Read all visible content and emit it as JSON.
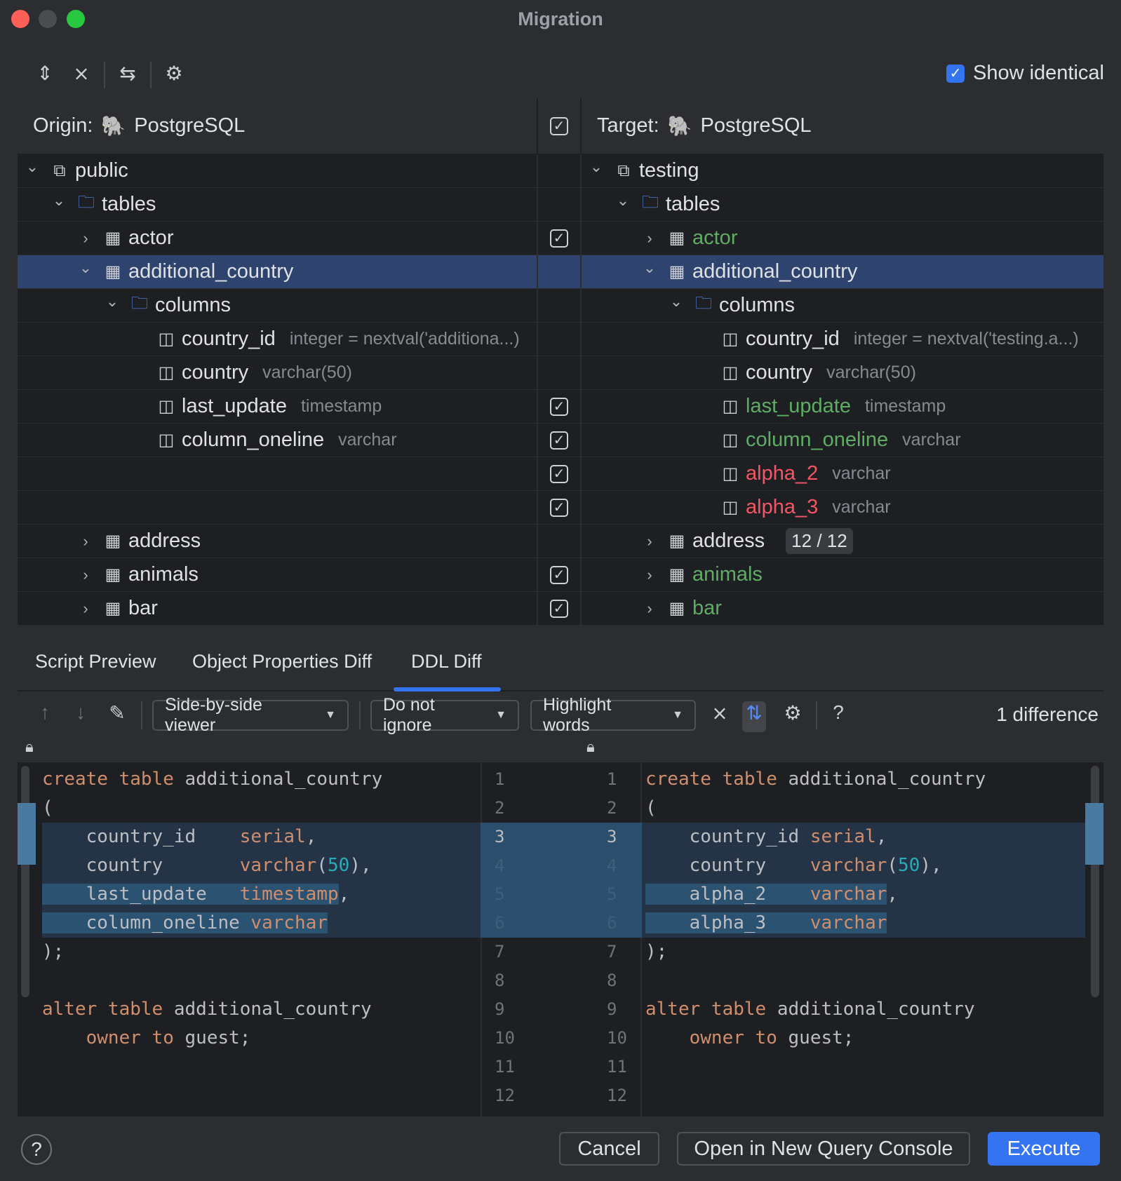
{
  "window": {
    "title": "Migration"
  },
  "toolbar": {
    "icons": [
      "expand-all-icon",
      "collapse-all-icon",
      "swap-icon",
      "settings-icon"
    ],
    "show_identical_label": "Show identical",
    "show_identical_checked": true
  },
  "tree": {
    "origin_label": "Origin:",
    "origin_db": "PostgreSQL",
    "target_label": "Target:",
    "target_db": "PostgreSQL",
    "header_checked": true,
    "colors": {
      "green": "#5fad65",
      "red": "#f75464",
      "selected": "#2e436e"
    },
    "rows": [
      {
        "l": {
          "lvl": 0,
          "arrow": "down",
          "icon": "schema",
          "name": "public"
        },
        "r": {
          "lvl": 0,
          "arrow": "down",
          "icon": "schema",
          "name": "testing"
        }
      },
      {
        "l": {
          "lvl": 1,
          "arrow": "down",
          "icon": "folder",
          "name": "tables"
        },
        "r": {
          "lvl": 1,
          "arrow": "down",
          "icon": "folder",
          "name": "tables"
        }
      },
      {
        "check": true,
        "l": {
          "lvl": 2,
          "arrow": "right",
          "icon": "table",
          "name": "actor"
        },
        "r": {
          "lvl": 2,
          "arrow": "right",
          "icon": "table",
          "name": "actor",
          "color": "green"
        }
      },
      {
        "selected": true,
        "l": {
          "lvl": 2,
          "arrow": "down",
          "icon": "table",
          "name": "additional_country"
        },
        "r": {
          "lvl": 2,
          "arrow": "down",
          "icon": "table",
          "name": "additional_country"
        }
      },
      {
        "l": {
          "lvl": 3,
          "arrow": "down",
          "icon": "folder",
          "name": "columns"
        },
        "r": {
          "lvl": 3,
          "arrow": "down",
          "icon": "folder",
          "name": "columns"
        }
      },
      {
        "l": {
          "lvl": 4,
          "icon": "key-column",
          "name": "country_id",
          "type": "integer = nextval('additiona...)"
        },
        "r": {
          "lvl": 4,
          "icon": "key-column",
          "name": "country_id",
          "type": "integer = nextval('testing.a...)"
        }
      },
      {
        "l": {
          "lvl": 4,
          "icon": "column",
          "name": "country",
          "type": "varchar(50)"
        },
        "r": {
          "lvl": 4,
          "icon": "column",
          "name": "country",
          "type": "varchar(50)"
        }
      },
      {
        "check": true,
        "l": {
          "lvl": 4,
          "icon": "column",
          "name": "last_update",
          "type": "timestamp"
        },
        "r": {
          "lvl": 4,
          "icon": "column",
          "name": "last_update",
          "type": "timestamp",
          "color": "green"
        }
      },
      {
        "check": true,
        "l": {
          "lvl": 4,
          "icon": "column",
          "name": "column_oneline",
          "type": "varchar"
        },
        "r": {
          "lvl": 4,
          "icon": "column",
          "name": "column_oneline",
          "type": "varchar",
          "color": "green"
        }
      },
      {
        "check": true,
        "r": {
          "lvl": 4,
          "icon": "column",
          "name": "alpha_2",
          "type": "varchar",
          "color": "red"
        }
      },
      {
        "check": true,
        "r": {
          "lvl": 4,
          "icon": "column",
          "name": "alpha_3",
          "type": "varchar",
          "color": "red"
        }
      },
      {
        "l": {
          "lvl": 2,
          "arrow": "right",
          "icon": "table",
          "name": "address"
        },
        "r": {
          "lvl": 2,
          "arrow": "right",
          "icon": "table",
          "name": "address",
          "badge": "12 / 12"
        }
      },
      {
        "check": true,
        "l": {
          "lvl": 2,
          "arrow": "right",
          "icon": "table",
          "name": "animals"
        },
        "r": {
          "lvl": 2,
          "arrow": "right",
          "icon": "table",
          "name": "animals",
          "color": "green"
        }
      },
      {
        "check": true,
        "l": {
          "lvl": 2,
          "arrow": "right",
          "icon": "table",
          "name": "bar"
        },
        "r": {
          "lvl": 2,
          "arrow": "right",
          "icon": "table",
          "name": "bar",
          "color": "green"
        }
      }
    ]
  },
  "tabs": [
    {
      "label": "Script Preview"
    },
    {
      "label": "Object Properties Diff"
    },
    {
      "label": "DDL Diff",
      "active": true
    }
  ],
  "diff_toolbar": {
    "viewer": "Side-by-side viewer",
    "ignore": "Do not ignore",
    "highlight": "Highlight words",
    "count": "1 difference"
  },
  "diff": {
    "left": [
      [
        [
          "kw",
          "create "
        ],
        [
          "kw",
          "table "
        ],
        [
          "id",
          "additional_country"
        ]
      ],
      [
        [
          "id",
          "("
        ]
      ],
      [
        [
          "id",
          "    country_id    "
        ],
        [
          "kw",
          "serial"
        ],
        [
          "id",
          ","
        ]
      ],
      [
        [
          "id",
          "    country       "
        ],
        [
          "kw",
          "varchar"
        ],
        [
          "id",
          "("
        ],
        [
          "num",
          "50"
        ],
        [
          "id",
          "),"
        ]
      ],
      [
        [
          "id",
          "    last_update   "
        ],
        [
          "kw",
          "timestamp"
        ],
        [
          "id",
          ","
        ]
      ],
      [
        [
          "id",
          "    column_oneline "
        ],
        [
          "kw",
          "varchar"
        ]
      ],
      [
        [
          "id",
          ");"
        ]
      ],
      [],
      [
        [
          "kw",
          "alter "
        ],
        [
          "kw",
          "table "
        ],
        [
          "id",
          "additional_country"
        ]
      ],
      [
        [
          "id",
          "    "
        ],
        [
          "kw",
          "owner "
        ],
        [
          "kw",
          "to "
        ],
        [
          "id",
          "guest;"
        ]
      ],
      [],
      []
    ],
    "right": [
      [
        [
          "kw",
          "create "
        ],
        [
          "kw",
          "table "
        ],
        [
          "id",
          "additional_country"
        ]
      ],
      [
        [
          "id",
          "("
        ]
      ],
      [
        [
          "id",
          "    country_id "
        ],
        [
          "kw",
          "serial"
        ],
        [
          "id",
          ","
        ]
      ],
      [
        [
          "id",
          "    country    "
        ],
        [
          "kw",
          "varchar"
        ],
        [
          "id",
          "("
        ],
        [
          "num",
          "50"
        ],
        [
          "id",
          "),"
        ]
      ],
      [
        [
          "id",
          "    alpha_2    "
        ],
        [
          "kw",
          "varchar"
        ],
        [
          "id",
          ","
        ]
      ],
      [
        [
          "id",
          "    alpha_3    "
        ],
        [
          "kw",
          "varchar"
        ]
      ],
      [
        [
          "id",
          ");"
        ]
      ],
      [],
      [
        [
          "kw",
          "alter "
        ],
        [
          "kw",
          "table "
        ],
        [
          "id",
          "additional_country"
        ]
      ],
      [
        [
          "id",
          "    "
        ],
        [
          "kw",
          "owner "
        ],
        [
          "kw",
          "to "
        ],
        [
          "id",
          "guest;"
        ]
      ],
      [],
      []
    ],
    "line_numbers": [
      "1",
      "2",
      "3",
      "4",
      "5",
      "6",
      "7",
      "8",
      "9",
      "10",
      "11",
      "12"
    ],
    "changed_lines": [
      3,
      4,
      5,
      6
    ]
  },
  "footer": {
    "cancel": "Cancel",
    "open_console": "Open in New Query Console",
    "execute": "Execute",
    "help": "?"
  }
}
